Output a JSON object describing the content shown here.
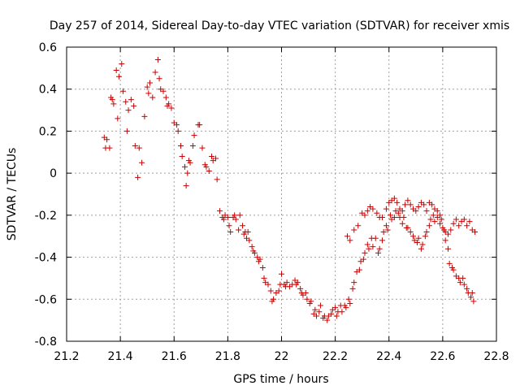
{
  "chart_data": {
    "type": "scatter",
    "title": "Day 257 of 2014, Sidereal Day-to-day VTEC variation (SDTVAR) for receiver xmis",
    "xlabel": "GPS time / hours",
    "ylabel": "SDTVAR / TECUs",
    "xlim": [
      21.2,
      22.8
    ],
    "ylim": [
      -0.8,
      0.6
    ],
    "x_ticks": [
      21.2,
      21.4,
      21.6,
      21.8,
      22,
      22.2,
      22.4,
      22.6,
      22.8
    ],
    "x_tick_labels": [
      "21.2",
      "21.4",
      "21.6",
      "21.8",
      "22",
      "22.2",
      "22.4",
      "22.6",
      "22.8"
    ],
    "y_ticks": [
      -0.8,
      -0.6,
      -0.4,
      -0.2,
      0,
      0.2,
      0.4,
      0.6
    ],
    "y_tick_labels": [
      "-0.8",
      "-0.6",
      "-0.4",
      "-0.2",
      "0",
      "0.2",
      "0.4",
      "0.6"
    ],
    "grid": true,
    "marker": "+",
    "marker_color": "#cc0000",
    "series": [
      {
        "name": "SDTVAR",
        "points": [
          [
            21.34,
            0.17
          ],
          [
            21.345,
            0.12
          ],
          [
            21.35,
            0.16
          ],
          [
            21.36,
            0.12
          ],
          [
            21.365,
            0.36
          ],
          [
            21.37,
            0.35
          ],
          [
            21.375,
            0.33
          ],
          [
            21.385,
            0.49
          ],
          [
            21.39,
            0.26
          ],
          [
            21.395,
            0.46
          ],
          [
            21.405,
            0.52
          ],
          [
            21.41,
            0.39
          ],
          [
            21.42,
            0.34
          ],
          [
            21.425,
            0.2
          ],
          [
            21.43,
            0.3
          ],
          [
            21.44,
            0.35
          ],
          [
            21.45,
            0.32
          ],
          [
            21.455,
            0.13
          ],
          [
            21.465,
            -0.02
          ],
          [
            21.47,
            0.12
          ],
          [
            21.48,
            0.05
          ],
          [
            21.49,
            0.27
          ],
          [
            21.5,
            0.41
          ],
          [
            21.505,
            0.38
          ],
          [
            21.51,
            0.43
          ],
          [
            21.52,
            0.36
          ],
          [
            21.53,
            0.48
          ],
          [
            21.54,
            0.54
          ],
          [
            21.545,
            0.45
          ],
          [
            21.55,
            0.4
          ],
          [
            21.56,
            0.39
          ],
          [
            21.57,
            0.36
          ],
          [
            21.575,
            0.32
          ],
          [
            21.58,
            0.33
          ],
          [
            21.59,
            0.31
          ],
          [
            21.6,
            0.24
          ],
          [
            21.61,
            0.23
          ],
          [
            21.615,
            0.2
          ],
          [
            21.625,
            0.13
          ],
          [
            21.63,
            0.08
          ],
          [
            21.64,
            0.03
          ],
          [
            21.645,
            -0.06
          ],
          [
            21.65,
            0.0
          ],
          [
            21.655,
            0.06
          ],
          [
            21.66,
            0.05
          ],
          [
            21.67,
            0.13
          ],
          [
            21.675,
            0.18
          ],
          [
            21.69,
            0.23
          ],
          [
            21.695,
            0.23
          ],
          [
            21.705,
            0.12
          ],
          [
            21.715,
            0.04
          ],
          [
            21.72,
            0.03
          ],
          [
            21.73,
            0.01
          ],
          [
            21.74,
            0.08
          ],
          [
            21.745,
            0.06
          ],
          [
            21.755,
            0.07
          ],
          [
            21.76,
            -0.03
          ],
          [
            21.77,
            -0.18
          ],
          [
            21.78,
            -0.21
          ],
          [
            21.785,
            -0.22
          ],
          [
            21.79,
            -0.2
          ],
          [
            21.8,
            -0.21
          ],
          [
            21.805,
            -0.25
          ],
          [
            21.81,
            -0.28
          ],
          [
            21.82,
            -0.21
          ],
          [
            21.825,
            -0.2
          ],
          [
            21.83,
            -0.22
          ],
          [
            21.84,
            -0.27
          ],
          [
            21.845,
            -0.2
          ],
          [
            21.855,
            -0.25
          ],
          [
            21.86,
            -0.29
          ],
          [
            21.865,
            -0.28
          ],
          [
            21.87,
            -0.31
          ],
          [
            21.875,
            -0.28
          ],
          [
            21.88,
            -0.32
          ],
          [
            21.89,
            -0.35
          ],
          [
            21.895,
            -0.37
          ],
          [
            21.9,
            -0.38
          ],
          [
            21.91,
            -0.4
          ],
          [
            21.915,
            -0.42
          ],
          [
            21.92,
            -0.41
          ],
          [
            21.93,
            -0.45
          ],
          [
            21.935,
            -0.5
          ],
          [
            21.94,
            -0.52
          ],
          [
            21.95,
            -0.53
          ],
          [
            21.96,
            -0.56
          ],
          [
            21.965,
            -0.61
          ],
          [
            21.97,
            -0.6
          ],
          [
            21.98,
            -0.57
          ],
          [
            21.99,
            -0.56
          ],
          [
            21.995,
            -0.53
          ],
          [
            22.0,
            -0.48
          ],
          [
            22.01,
            -0.53
          ],
          [
            22.015,
            -0.54
          ],
          [
            22.02,
            -0.52
          ],
          [
            22.03,
            -0.54
          ],
          [
            22.04,
            -0.53
          ],
          [
            22.05,
            -0.51
          ],
          [
            22.055,
            -0.53
          ],
          [
            22.06,
            -0.52
          ],
          [
            22.07,
            -0.55
          ],
          [
            22.075,
            -0.57
          ],
          [
            22.08,
            -0.58
          ],
          [
            22.09,
            -0.57
          ],
          [
            22.095,
            -0.6
          ],
          [
            22.105,
            -0.62
          ],
          [
            22.11,
            -0.61
          ],
          [
            22.12,
            -0.67
          ],
          [
            22.125,
            -0.65
          ],
          [
            22.13,
            -0.68
          ],
          [
            22.14,
            -0.66
          ],
          [
            22.145,
            -0.63
          ],
          [
            22.155,
            -0.69
          ],
          [
            22.16,
            -0.68
          ],
          [
            22.17,
            -0.7
          ],
          [
            22.175,
            -0.68
          ],
          [
            22.185,
            -0.67
          ],
          [
            22.19,
            -0.65
          ],
          [
            22.2,
            -0.64
          ],
          [
            22.205,
            -0.68
          ],
          [
            22.21,
            -0.66
          ],
          [
            22.22,
            -0.63
          ],
          [
            22.225,
            -0.66
          ],
          [
            22.235,
            -0.63
          ],
          [
            22.24,
            -0.64
          ],
          [
            22.25,
            -0.6
          ],
          [
            22.255,
            -0.62
          ],
          [
            22.265,
            -0.55
          ],
          [
            22.27,
            -0.52
          ],
          [
            22.28,
            -0.47
          ],
          [
            22.29,
            -0.46
          ],
          [
            22.295,
            -0.42
          ],
          [
            22.305,
            -0.41
          ],
          [
            22.31,
            -0.38
          ],
          [
            22.32,
            -0.34
          ],
          [
            22.325,
            -0.36
          ],
          [
            22.335,
            -0.31
          ],
          [
            22.34,
            -0.35
          ],
          [
            22.35,
            -0.31
          ],
          [
            22.36,
            -0.38
          ],
          [
            22.365,
            -0.36
          ],
          [
            22.375,
            -0.32
          ],
          [
            22.38,
            -0.28
          ],
          [
            22.39,
            -0.25
          ],
          [
            22.395,
            -0.27
          ],
          [
            22.405,
            -0.2
          ],
          [
            22.41,
            -0.22
          ],
          [
            22.42,
            -0.21
          ],
          [
            22.425,
            -0.18
          ],
          [
            22.435,
            -0.19
          ],
          [
            22.44,
            -0.21
          ],
          [
            22.45,
            -0.24
          ],
          [
            22.455,
            -0.21
          ],
          [
            22.465,
            -0.26
          ],
          [
            22.47,
            -0.26
          ],
          [
            22.48,
            -0.28
          ],
          [
            22.49,
            -0.3
          ],
          [
            22.495,
            -0.32
          ],
          [
            22.505,
            -0.33
          ],
          [
            22.51,
            -0.31
          ],
          [
            22.52,
            -0.36
          ],
          [
            22.525,
            -0.34
          ],
          [
            22.535,
            -0.3
          ],
          [
            22.54,
            -0.28
          ],
          [
            22.55,
            -0.25
          ],
          [
            22.555,
            -0.22
          ],
          [
            22.565,
            -0.2
          ],
          [
            22.57,
            -0.23
          ],
          [
            22.58,
            -0.18
          ],
          [
            22.59,
            -0.2
          ],
          [
            22.595,
            -0.22
          ],
          [
            22.605,
            -0.27
          ],
          [
            22.61,
            -0.32
          ],
          [
            22.62,
            -0.36
          ],
          [
            22.625,
            -0.43
          ],
          [
            22.635,
            -0.45
          ],
          [
            22.64,
            -0.46
          ],
          [
            22.65,
            -0.49
          ],
          [
            22.66,
            -0.5
          ],
          [
            22.665,
            -0.52
          ],
          [
            22.675,
            -0.5
          ],
          [
            22.68,
            -0.53
          ],
          [
            22.69,
            -0.55
          ],
          [
            22.695,
            -0.57
          ],
          [
            22.705,
            -0.59
          ],
          [
            22.71,
            -0.57
          ],
          [
            22.715,
            -0.61
          ],
          [
            22.245,
            -0.3
          ],
          [
            22.255,
            -0.32
          ],
          [
            22.27,
            -0.27
          ],
          [
            22.285,
            -0.25
          ],
          [
            22.3,
            -0.19
          ],
          [
            22.31,
            -0.2
          ],
          [
            22.32,
            -0.18
          ],
          [
            22.33,
            -0.16
          ],
          [
            22.34,
            -0.17
          ],
          [
            22.355,
            -0.19
          ],
          [
            22.365,
            -0.21
          ],
          [
            22.375,
            -0.21
          ],
          [
            22.39,
            -0.17
          ],
          [
            22.4,
            -0.14
          ],
          [
            22.41,
            -0.13
          ],
          [
            22.42,
            -0.12
          ],
          [
            22.43,
            -0.14
          ],
          [
            22.44,
            -0.17
          ],
          [
            22.45,
            -0.18
          ],
          [
            22.46,
            -0.15
          ],
          [
            22.47,
            -0.13
          ],
          [
            22.48,
            -0.15
          ],
          [
            22.49,
            -0.17
          ],
          [
            22.5,
            -0.18
          ],
          [
            22.51,
            -0.16
          ],
          [
            22.52,
            -0.14
          ],
          [
            22.53,
            -0.15
          ],
          [
            22.54,
            -0.18
          ],
          [
            22.55,
            -0.14
          ],
          [
            22.56,
            -0.15
          ],
          [
            22.57,
            -0.17
          ],
          [
            22.58,
            -0.21
          ],
          [
            22.59,
            -0.24
          ],
          [
            22.6,
            -0.26
          ],
          [
            22.61,
            -0.28
          ],
          [
            22.62,
            -0.29
          ],
          [
            22.63,
            -0.27
          ],
          [
            22.64,
            -0.24
          ],
          [
            22.65,
            -0.22
          ],
          [
            22.66,
            -0.25
          ],
          [
            22.67,
            -0.23
          ],
          [
            22.68,
            -0.22
          ],
          [
            22.69,
            -0.25
          ],
          [
            22.7,
            -0.23
          ],
          [
            22.71,
            -0.27
          ],
          [
            22.72,
            -0.28
          ]
        ]
      }
    ]
  }
}
